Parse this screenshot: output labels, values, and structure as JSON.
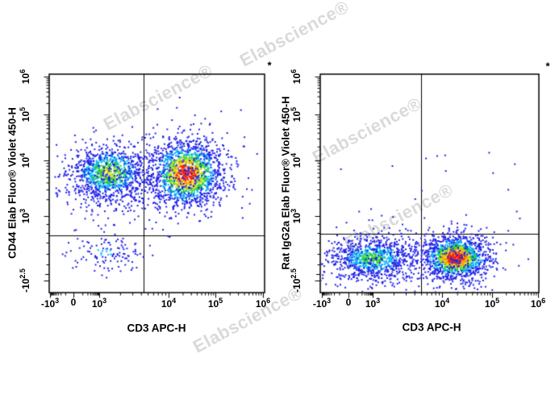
{
  "watermark": {
    "text": "Elabscience®",
    "color": "rgba(0,0,0,0.15)"
  },
  "colors": {
    "axis": "#000000",
    "dot_blue": "#2121e8",
    "dot_cyan": "#00b4f5",
    "dot_green": "#2fd32f",
    "dot_yellow": "#d6e300",
    "dot_orange": "#ff9400",
    "dot_red": "#f52310"
  },
  "chart_data": [
    {
      "type": "scatter",
      "plot": "left",
      "xlabel": "CD3 APC-H",
      "ylabel": "CD44 Elab Fluor® Violet 450-H",
      "annotation": "*",
      "scale": "biexponential (logicle)",
      "grid": false,
      "x_ticks": [
        "-10^3",
        "0",
        "10^3",
        "10^4",
        "10^5",
        "10^6"
      ],
      "y_ticks": [
        "10^6",
        "10^5",
        "10^4",
        "10^3",
        "-10^2.5"
      ],
      "quadrant_gate": {
        "x_at": "≈5×10^3",
        "y_at": "≈5×10^2"
      },
      "populations": [
        {
          "name": "CD3- CD44+ (upper-left blob)",
          "approx_center": {
            "cd3": "8×10^2",
            "cd44": "8×10^3"
          },
          "count": 900,
          "peak_color": "yellow",
          "fx": 0.28,
          "fy": 0.452,
          "sx": 0.09,
          "sy": 0.062
        },
        {
          "name": "CD3- CD44+ halo",
          "count": 260,
          "peak_color": "blue",
          "fx": 0.285,
          "fy": 0.49,
          "sx": 0.115,
          "sy": 0.1
        },
        {
          "name": "CD3+ CD44+ (upper-right blob)",
          "approx_center": {
            "cd3": "2×10^4",
            "cd44": "1×10^4"
          },
          "count": 1400,
          "peak_color": "red",
          "fx": 0.637,
          "fy": 0.455,
          "sx": 0.083,
          "sy": 0.075
        },
        {
          "name": "CD3+ CD44+ halo",
          "count": 300,
          "peak_color": "blue",
          "fx": 0.64,
          "fy": 0.462,
          "sx": 0.12,
          "sy": 0.105
        },
        {
          "name": "CD3- CD44- (lower-left sparse)",
          "approx_center": {
            "cd3": "8×10^2",
            "cd44": "<10^2.5"
          },
          "count": 110,
          "peak_color": "cyan",
          "fx": 0.258,
          "fy": 0.815,
          "sx": 0.082,
          "sy": 0.047
        },
        {
          "name": "scattered events",
          "count": 42,
          "peak_color": "blue",
          "uniform": {
            "x0": 0.06,
            "x1": 0.92,
            "y0": 0.24,
            "y1": 0.84
          }
        }
      ]
    },
    {
      "type": "scatter",
      "plot": "right",
      "xlabel": "CD3 APC-H",
      "ylabel": "Rat IgG2a Elab Fluor® Violet 450-H",
      "annotation": "*",
      "scale": "biexponential (logicle)",
      "grid": false,
      "x_ticks": [
        "-10^3",
        "0",
        "10^3",
        "10^4",
        "10^5",
        "10^6"
      ],
      "y_ticks": [
        "10^6",
        "10^5",
        "10^4",
        "10^3",
        "-10^2.5"
      ],
      "quadrant_gate": {
        "x_at": "≈5×10^3",
        "y_at": "≈5×10^2"
      },
      "populations": [
        {
          "name": "CD3- IgG2a- (lower-left blob)",
          "approx_center": {
            "cd3": "1×10^3",
            "igg2a": "<10^2.5"
          },
          "count": 800,
          "peak_color": "green",
          "fx": 0.24,
          "fy": 0.845,
          "sx": 0.1,
          "sy": 0.048
        },
        {
          "name": "CD3- halo",
          "count": 200,
          "peak_color": "blue",
          "fx": 0.245,
          "fy": 0.843,
          "sx": 0.14,
          "sy": 0.068
        },
        {
          "name": "CD3+ IgG2a- (lower-right blob)",
          "approx_center": {
            "cd3": "2×10^4",
            "igg2a": "<10^2.5"
          },
          "count": 1200,
          "peak_color": "red",
          "fx": 0.62,
          "fy": 0.841,
          "sx": 0.072,
          "sy": 0.05
        },
        {
          "name": "CD3+ halo",
          "count": 280,
          "peak_color": "blue",
          "fx": 0.623,
          "fy": 0.845,
          "sx": 0.105,
          "sy": 0.075
        },
        {
          "name": "scattered events",
          "count": 22,
          "peak_color": "blue",
          "uniform": {
            "x0": 0.05,
            "x1": 0.9,
            "y0": 0.35,
            "y1": 0.72
          }
        }
      ]
    }
  ]
}
